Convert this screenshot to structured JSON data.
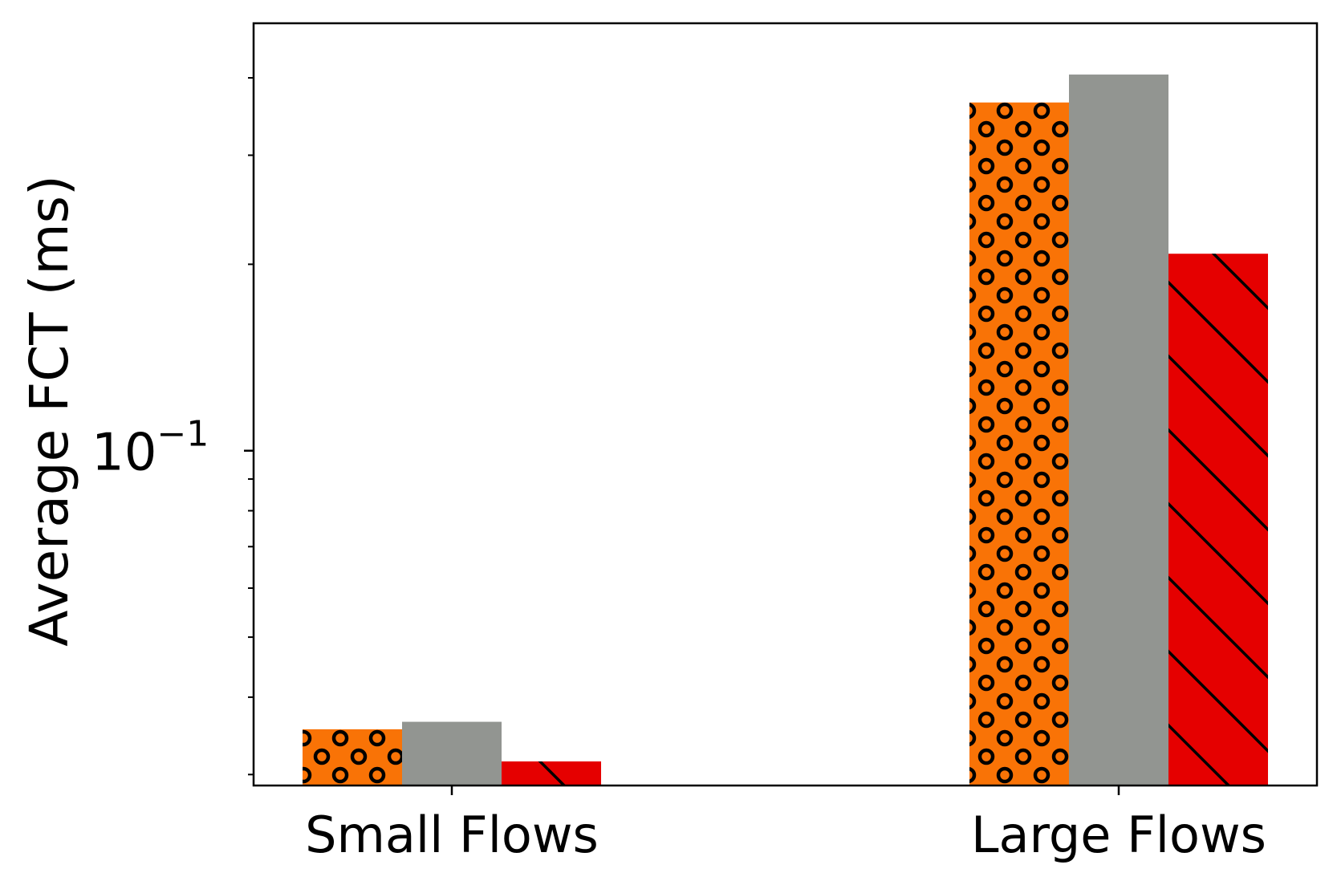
{
  "chart_data": {
    "type": "bar",
    "title": "",
    "xlabel": "",
    "ylabel": "Average FCT (ms)",
    "yscale": "log",
    "ylim": [
      0.0288,
      0.49
    ],
    "grid": false,
    "legend": "none",
    "categories": [
      "Small Flows",
      "Large Flows"
    ],
    "y_major_ticks": [
      {
        "value": 0.1,
        "base": "10",
        "exponent": "−1"
      }
    ],
    "y_minor_ticks": [
      0.03,
      0.04,
      0.05,
      0.06,
      0.07,
      0.08,
      0.09,
      0.2,
      0.3,
      0.4
    ],
    "series": [
      {
        "color": "#f97306",
        "pattern": "circles",
        "values": [
          0.0355,
          0.365
        ]
      },
      {
        "color": "#929591",
        "pattern": "none",
        "values": [
          0.0365,
          0.405
        ]
      },
      {
        "color": "#e50000",
        "pattern": "diagonal",
        "values": [
          0.0315,
          0.208
        ]
      }
    ]
  }
}
